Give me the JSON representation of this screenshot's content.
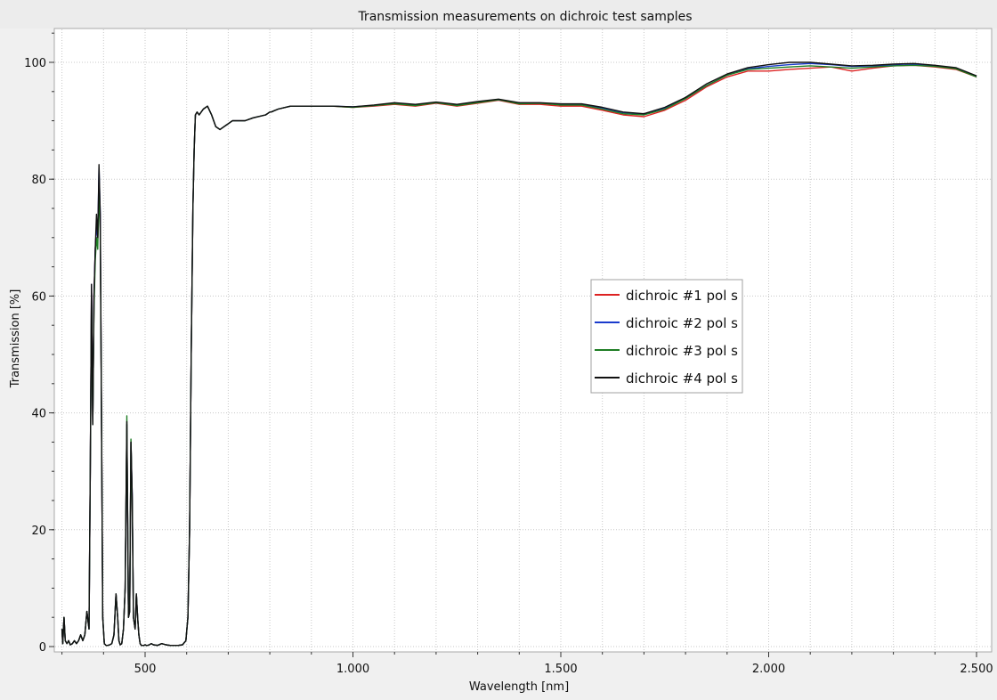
{
  "chart_data": {
    "type": "line",
    "title": "Transmission measurements on dichroic test samples",
    "xlabel": "Wavelength [nm]",
    "ylabel": "Transmission [%]",
    "xlim": [
      300,
      2510
    ],
    "ylim": [
      0,
      105
    ],
    "x_ticks": [
      {
        "value": 500,
        "label": "500"
      },
      {
        "value": 1000,
        "label": "1.000"
      },
      {
        "value": 1500,
        "label": "1.500"
      },
      {
        "value": 2000,
        "label": "2.000"
      },
      {
        "value": 2500,
        "label": "2.500"
      }
    ],
    "y_ticks": [
      {
        "value": 0,
        "label": "0"
      },
      {
        "value": 20,
        "label": "20"
      },
      {
        "value": 40,
        "label": "40"
      },
      {
        "value": 60,
        "label": "60"
      },
      {
        "value": 80,
        "label": "80"
      },
      {
        "value": 100,
        "label": "100"
      }
    ],
    "grid": true,
    "legend_position": "center-right",
    "base_x": [
      300,
      302,
      305,
      308,
      312,
      316,
      320,
      325,
      330,
      335,
      340,
      345,
      350,
      355,
      360,
      365,
      368,
      371,
      374,
      377,
      380,
      383,
      386,
      389,
      392,
      395,
      398,
      402,
      406,
      410,
      415,
      420,
      425,
      430,
      434,
      437,
      440,
      444,
      448,
      452,
      456,
      460,
      463,
      466,
      469,
      472,
      476,
      479,
      482,
      485,
      488,
      491,
      494,
      497,
      500,
      503,
      506,
      510,
      515,
      520,
      530,
      540,
      550,
      560,
      570,
      580,
      590,
      598,
      603,
      607,
      611,
      615,
      618,
      621,
      625,
      630,
      640,
      650,
      660,
      670,
      680,
      690,
      700,
      710,
      720,
      740,
      760,
      790,
      800,
      803,
      820,
      850,
      900,
      950,
      1000,
      1050,
      1100,
      1150,
      1200,
      1250,
      1300,
      1350,
      1400,
      1450,
      1500,
      1550,
      1600,
      1650,
      1700,
      1750,
      1800,
      1850,
      1900,
      1950,
      2000,
      2050,
      2100,
      2150,
      2200,
      2250,
      2300,
      2350,
      2400,
      2450,
      2500
    ],
    "series": [
      {
        "name": "dichroic #1 pol s",
        "color": "#dd2222",
        "y": [
          3,
          0.5,
          5,
          1,
          0.5,
          1,
          0.3,
          0.5,
          1,
          0.5,
          1,
          2,
          1,
          2,
          6,
          3,
          30,
          62,
          38,
          60,
          68,
          72,
          70,
          80,
          73,
          40,
          5,
          0.5,
          0.2,
          0.2,
          0.3,
          0.5,
          2,
          9,
          5,
          1,
          0.3,
          0.5,
          3,
          10,
          38,
          5,
          6,
          35,
          25,
          5,
          3,
          9,
          5,
          2,
          0.5,
          0.2,
          0.2,
          0.2,
          0.3,
          0.2,
          0.2,
          0.3,
          0.5,
          0.3,
          0.2,
          0.5,
          0.3,
          0.2,
          0.2,
          0.2,
          0.3,
          1,
          5,
          20,
          50,
          75,
          85,
          91,
          91.5,
          91,
          92,
          92.5,
          91,
          89,
          88.5,
          89,
          89.5,
          90,
          90,
          90,
          90.5,
          91,
          91.5,
          91.5,
          92,
          92.5,
          92.5,
          92.5,
          92.3,
          92.5,
          92.8,
          92.5,
          93,
          92.5,
          93,
          93.5,
          92.8,
          92.8,
          92.5,
          92.5,
          91.8,
          91,
          90.7,
          91.8,
          93.5,
          95.8,
          97.5,
          98.5,
          98.5,
          98.8,
          99,
          99.2,
          98.5,
          99,
          99.4,
          99.5,
          99.2,
          98.8,
          97.5
        ]
      },
      {
        "name": "dichroic #2 pol s",
        "color": "#1a3bcc",
        "y": [
          3,
          0.5,
          5,
          1,
          0.5,
          1,
          0.3,
          0.5,
          1,
          0.5,
          1,
          2,
          1,
          2,
          6,
          3,
          30,
          62,
          38,
          60,
          68,
          72,
          70,
          82,
          74,
          40,
          5,
          0.5,
          0.2,
          0.2,
          0.3,
          0.5,
          2,
          9,
          5,
          1,
          0.3,
          0.5,
          3,
          10,
          38,
          5,
          6,
          35,
          26,
          5,
          3,
          9,
          5,
          2,
          0.5,
          0.2,
          0.2,
          0.2,
          0.3,
          0.2,
          0.2,
          0.3,
          0.5,
          0.3,
          0.2,
          0.5,
          0.3,
          0.2,
          0.2,
          0.2,
          0.3,
          1,
          5,
          20,
          50,
          75,
          85,
          91,
          91.5,
          91,
          92,
          92.5,
          91,
          89,
          88.5,
          89,
          89.5,
          90,
          90,
          90,
          90.5,
          91,
          91.5,
          91.5,
          92,
          92.5,
          92.5,
          92.5,
          92.4,
          92.6,
          93,
          92.7,
          93.1,
          92.7,
          93.2,
          93.6,
          93,
          93,
          92.8,
          92.8,
          92.2,
          91.4,
          91.1,
          92.2,
          93.8,
          96,
          97.8,
          98.9,
          99.3,
          99.6,
          99.8,
          99.6,
          99.3,
          99.4,
          99.5,
          99.6,
          99.4,
          99,
          97.6
        ]
      },
      {
        "name": "dichroic #3 pol s",
        "color": "#1e7d24",
        "y": [
          3,
          0.5,
          5,
          1,
          0.5,
          1,
          0.3,
          0.5,
          1,
          0.5,
          1,
          2,
          1,
          2,
          6,
          3,
          30,
          60,
          38,
          58,
          66,
          70,
          68,
          78,
          71,
          40,
          5,
          0.5,
          0.2,
          0.2,
          0.3,
          0.5,
          2,
          9,
          5,
          1,
          0.3,
          0.5,
          3,
          10,
          39.5,
          5,
          6,
          35.5,
          25,
          5,
          3,
          9,
          5,
          2,
          0.5,
          0.2,
          0.2,
          0.2,
          0.3,
          0.2,
          0.2,
          0.3,
          0.5,
          0.3,
          0.2,
          0.5,
          0.3,
          0.2,
          0.2,
          0.2,
          0.3,
          1,
          5,
          20,
          50,
          75,
          85,
          91,
          91.5,
          91,
          92,
          92.5,
          91,
          89,
          88.5,
          89,
          89.5,
          90,
          90,
          90,
          90.5,
          91,
          91.5,
          91.5,
          92,
          92.5,
          92.5,
          92.5,
          92.3,
          92.6,
          92.9,
          92.6,
          93.1,
          92.6,
          93.1,
          93.6,
          92.9,
          93,
          92.7,
          92.7,
          92,
          91.2,
          91,
          92,
          93.8,
          96,
          97.8,
          98.8,
          99,
          99.2,
          99.4,
          99.2,
          99,
          99.2,
          99.4,
          99.5,
          99.3,
          98.9,
          97.5
        ]
      },
      {
        "name": "dichroic #4 pol s",
        "color": "#111111",
        "y": [
          3,
          0.5,
          5,
          1,
          0.5,
          1,
          0.3,
          0.5,
          1,
          0.5,
          1,
          2,
          1,
          2,
          6,
          3,
          30,
          62,
          38,
          60,
          68,
          74,
          70,
          82.5,
          74,
          40,
          5,
          0.5,
          0.2,
          0.2,
          0.3,
          0.5,
          2,
          9,
          5,
          1,
          0.3,
          0.5,
          3,
          10,
          38.5,
          5,
          6,
          35,
          26,
          5,
          3,
          9,
          5,
          2,
          0.5,
          0.2,
          0.2,
          0.2,
          0.3,
          0.2,
          0.2,
          0.3,
          0.5,
          0.3,
          0.2,
          0.5,
          0.3,
          0.2,
          0.2,
          0.2,
          0.3,
          1,
          5,
          20,
          50,
          75,
          85,
          91,
          91.5,
          91,
          92,
          92.5,
          91,
          89,
          88.5,
          89,
          89.5,
          90,
          90,
          90,
          90.5,
          91,
          91.5,
          91.5,
          92,
          92.5,
          92.5,
          92.5,
          92.4,
          92.7,
          93.1,
          92.8,
          93.2,
          92.8,
          93.3,
          93.7,
          93.1,
          93.1,
          92.9,
          92.9,
          92.3,
          91.5,
          91.2,
          92.3,
          94,
          96.3,
          98,
          99.1,
          99.6,
          100,
          100,
          99.7,
          99.4,
          99.5,
          99.7,
          99.8,
          99.5,
          99.1,
          97.7
        ]
      }
    ]
  }
}
